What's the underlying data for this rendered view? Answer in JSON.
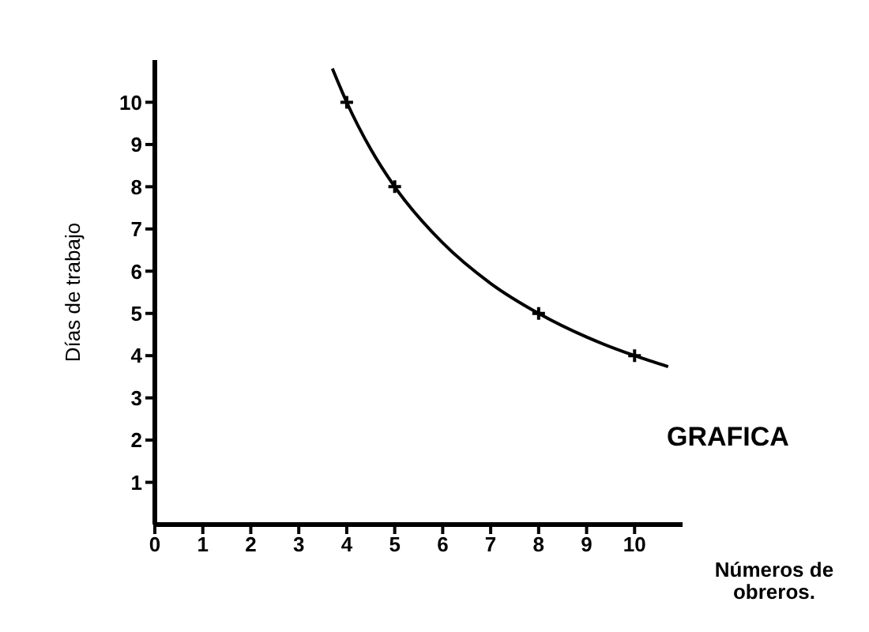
{
  "chart_data": {
    "type": "line",
    "xlabel": "Números de obreros.",
    "ylabel": "Días de trabajo",
    "annotations": [
      "GRAFICA"
    ],
    "xlim": [
      0,
      11
    ],
    "ylim": [
      0,
      11
    ],
    "xticks": [
      0,
      1,
      2,
      3,
      4,
      5,
      6,
      7,
      8,
      9,
      10
    ],
    "yticks": [
      1,
      2,
      3,
      4,
      5,
      6,
      7,
      8,
      9,
      10
    ],
    "grid": false,
    "series": [
      {
        "color": "#000000",
        "marker": "none",
        "x": [
          3.7,
          4,
          4.5,
          5,
          6,
          7,
          8,
          9,
          10,
          10.7
        ],
        "values": [
          10.8,
          10,
          8.89,
          8,
          6.67,
          5.71,
          5,
          4.44,
          4,
          3.74
        ]
      },
      {
        "type": "scatter",
        "color": "#000000",
        "marker": "cross",
        "x": [
          4,
          5,
          8,
          10
        ],
        "values": [
          10,
          8,
          5,
          4
        ]
      }
    ]
  }
}
